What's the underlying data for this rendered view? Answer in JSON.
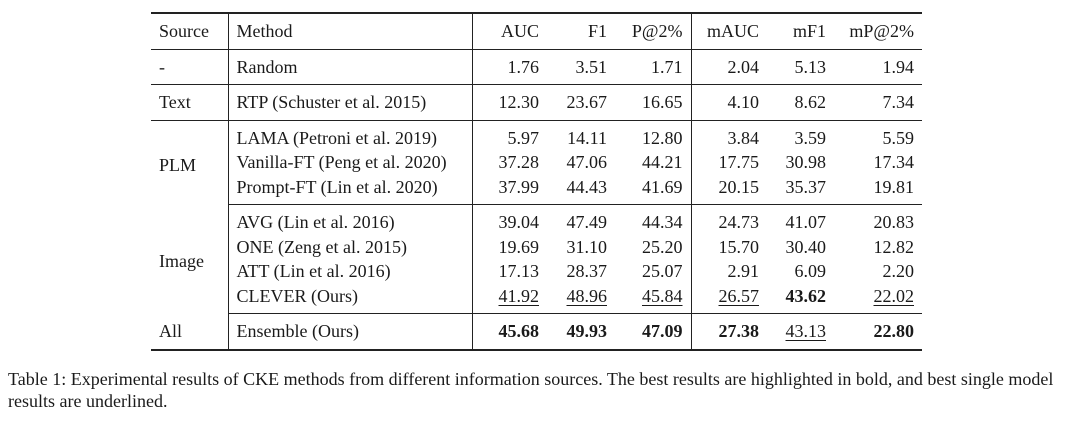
{
  "table": {
    "columns": [
      "Source",
      "Method",
      "AUC",
      "F1",
      "P@2%",
      "mAUC",
      "mF1",
      "mP@2%"
    ],
    "groups": [
      {
        "source": "-",
        "rows": [
          {
            "method": "Random",
            "values": [
              "1.76",
              "3.51",
              "1.71",
              "2.04",
              "5.13",
              "1.94"
            ]
          }
        ]
      },
      {
        "source": "Text",
        "rows": [
          {
            "method": "RTP (Schuster et al. 2015)",
            "values": [
              "12.30",
              "23.67",
              "16.65",
              "4.10",
              "8.62",
              "7.34"
            ]
          }
        ]
      },
      {
        "source": "PLM",
        "rows": [
          {
            "method": "LAMA (Petroni et al. 2019)",
            "values": [
              "5.97",
              "14.11",
              "12.80",
              "3.84",
              "3.59",
              "5.59"
            ]
          },
          {
            "method": "Vanilla-FT (Peng et al. 2020)",
            "values": [
              "37.28",
              "47.06",
              "44.21",
              "17.75",
              "30.98",
              "17.34"
            ]
          },
          {
            "method": "Prompt-FT (Lin et al. 2020)",
            "values": [
              "37.99",
              "44.43",
              "41.69",
              "20.15",
              "35.37",
              "19.81"
            ]
          }
        ]
      },
      {
        "source": "Image",
        "rows": [
          {
            "method": "AVG (Lin et al. 2016)",
            "values": [
              "39.04",
              "47.49",
              "44.34",
              "24.73",
              "41.07",
              "20.83"
            ]
          },
          {
            "method": "ONE (Zeng et al. 2015)",
            "values": [
              "19.69",
              "31.10",
              "25.20",
              "15.70",
              "30.40",
              "12.82"
            ]
          },
          {
            "method": "ATT (Lin et al. 2016)",
            "values": [
              "17.13",
              "28.37",
              "25.07",
              "2.91",
              "6.09",
              "2.20"
            ]
          },
          {
            "method": "CLEVER (Ours)",
            "values": [
              "41.92",
              "48.96",
              "45.84",
              "26.57",
              "43.62",
              "22.02"
            ],
            "bold": [
              false,
              false,
              false,
              false,
              true,
              false
            ],
            "underline": [
              true,
              true,
              true,
              true,
              false,
              true
            ]
          }
        ]
      },
      {
        "source": "All",
        "rows": [
          {
            "method": "Ensemble (Ours)",
            "values": [
              "45.68",
              "49.93",
              "47.09",
              "27.38",
              "43.13",
              "22.80"
            ],
            "bold": [
              true,
              true,
              true,
              true,
              false,
              true
            ],
            "underline": [
              false,
              false,
              false,
              false,
              true,
              false
            ]
          }
        ]
      }
    ]
  },
  "caption": "Table 1: Experimental results of CKE methods from different information sources. The best results are highlighted in bold, and best single model results are underlined."
}
